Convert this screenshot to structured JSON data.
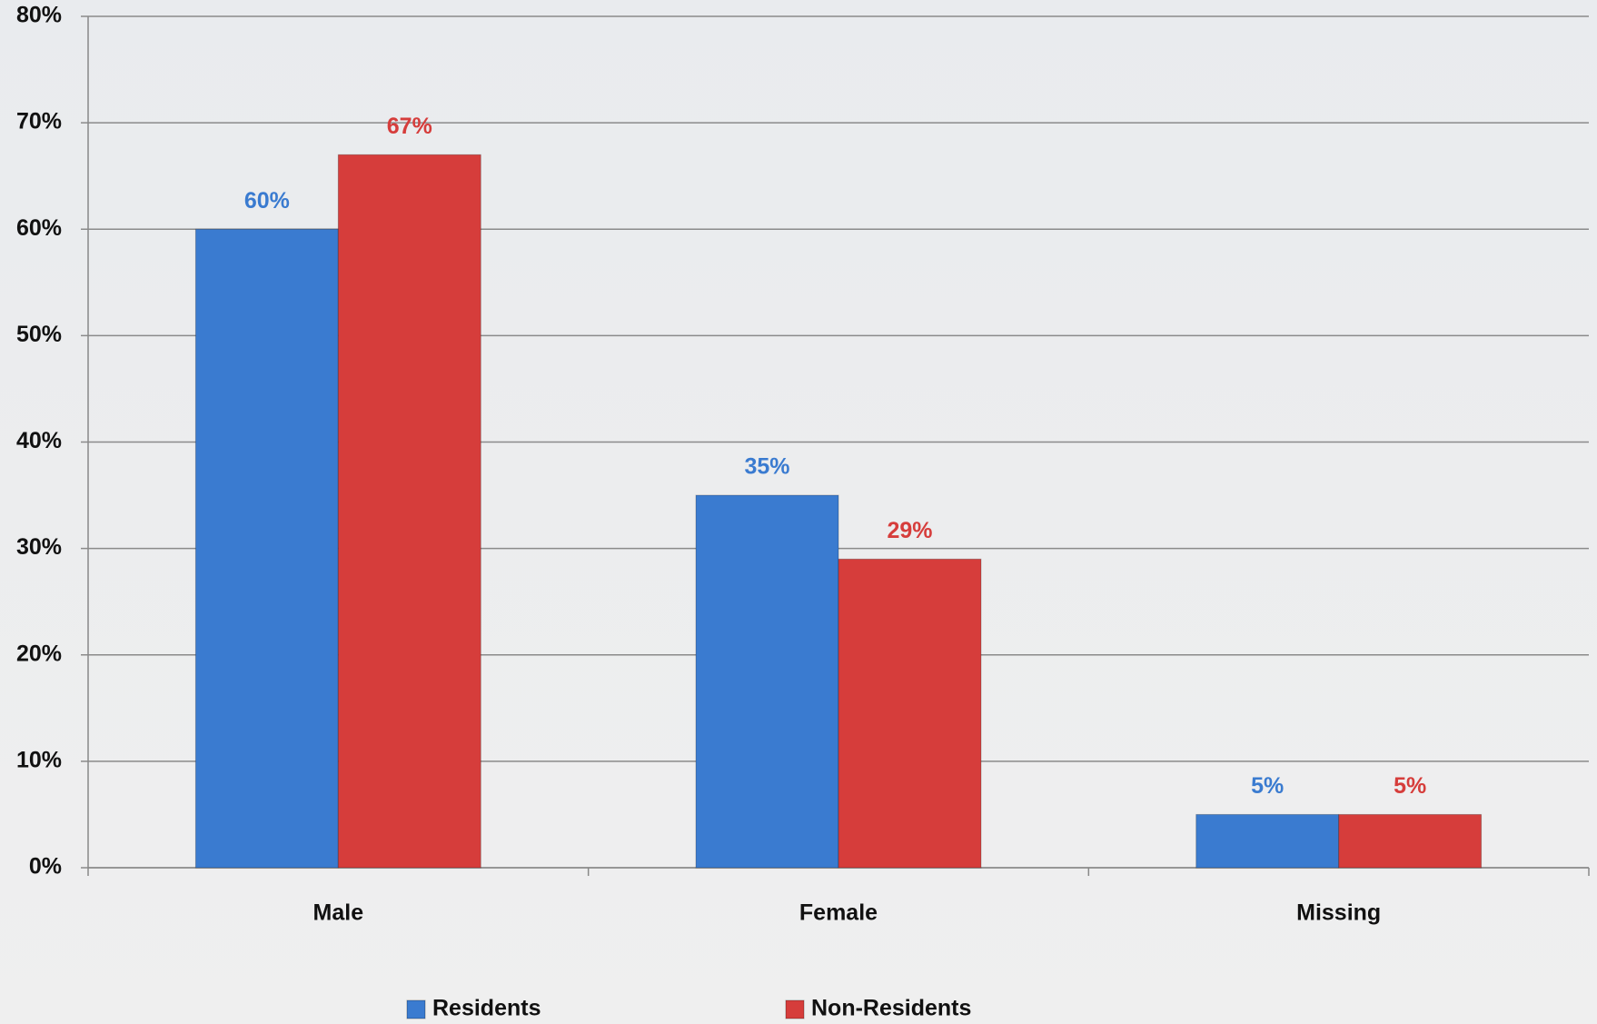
{
  "chart_data": {
    "type": "bar",
    "categories": [
      "Male",
      "Female",
      "Missing"
    ],
    "series": [
      {
        "name": "Residents",
        "color": "#3a7bd0",
        "values": [
          60,
          35,
          5
        ],
        "value_labels": [
          "60%",
          "35%",
          "5%"
        ]
      },
      {
        "name": "Non-Residents",
        "color": "#d63d3b",
        "values": [
          67,
          29,
          5
        ],
        "value_labels": [
          "67%",
          "29%",
          "5%"
        ]
      }
    ],
    "ylim": [
      0,
      80
    ],
    "yticks": [
      {
        "value": 0,
        "label": "0%"
      },
      {
        "value": 10,
        "label": "10%"
      },
      {
        "value": 20,
        "label": "20%"
      },
      {
        "value": 30,
        "label": "30%"
      },
      {
        "value": 40,
        "label": "40%"
      },
      {
        "value": 50,
        "label": "50%"
      },
      {
        "value": 60,
        "label": "60%"
      },
      {
        "value": 70,
        "label": "70%"
      },
      {
        "value": 80,
        "label": "80%"
      }
    ],
    "grid": true,
    "legend": "bottom"
  }
}
